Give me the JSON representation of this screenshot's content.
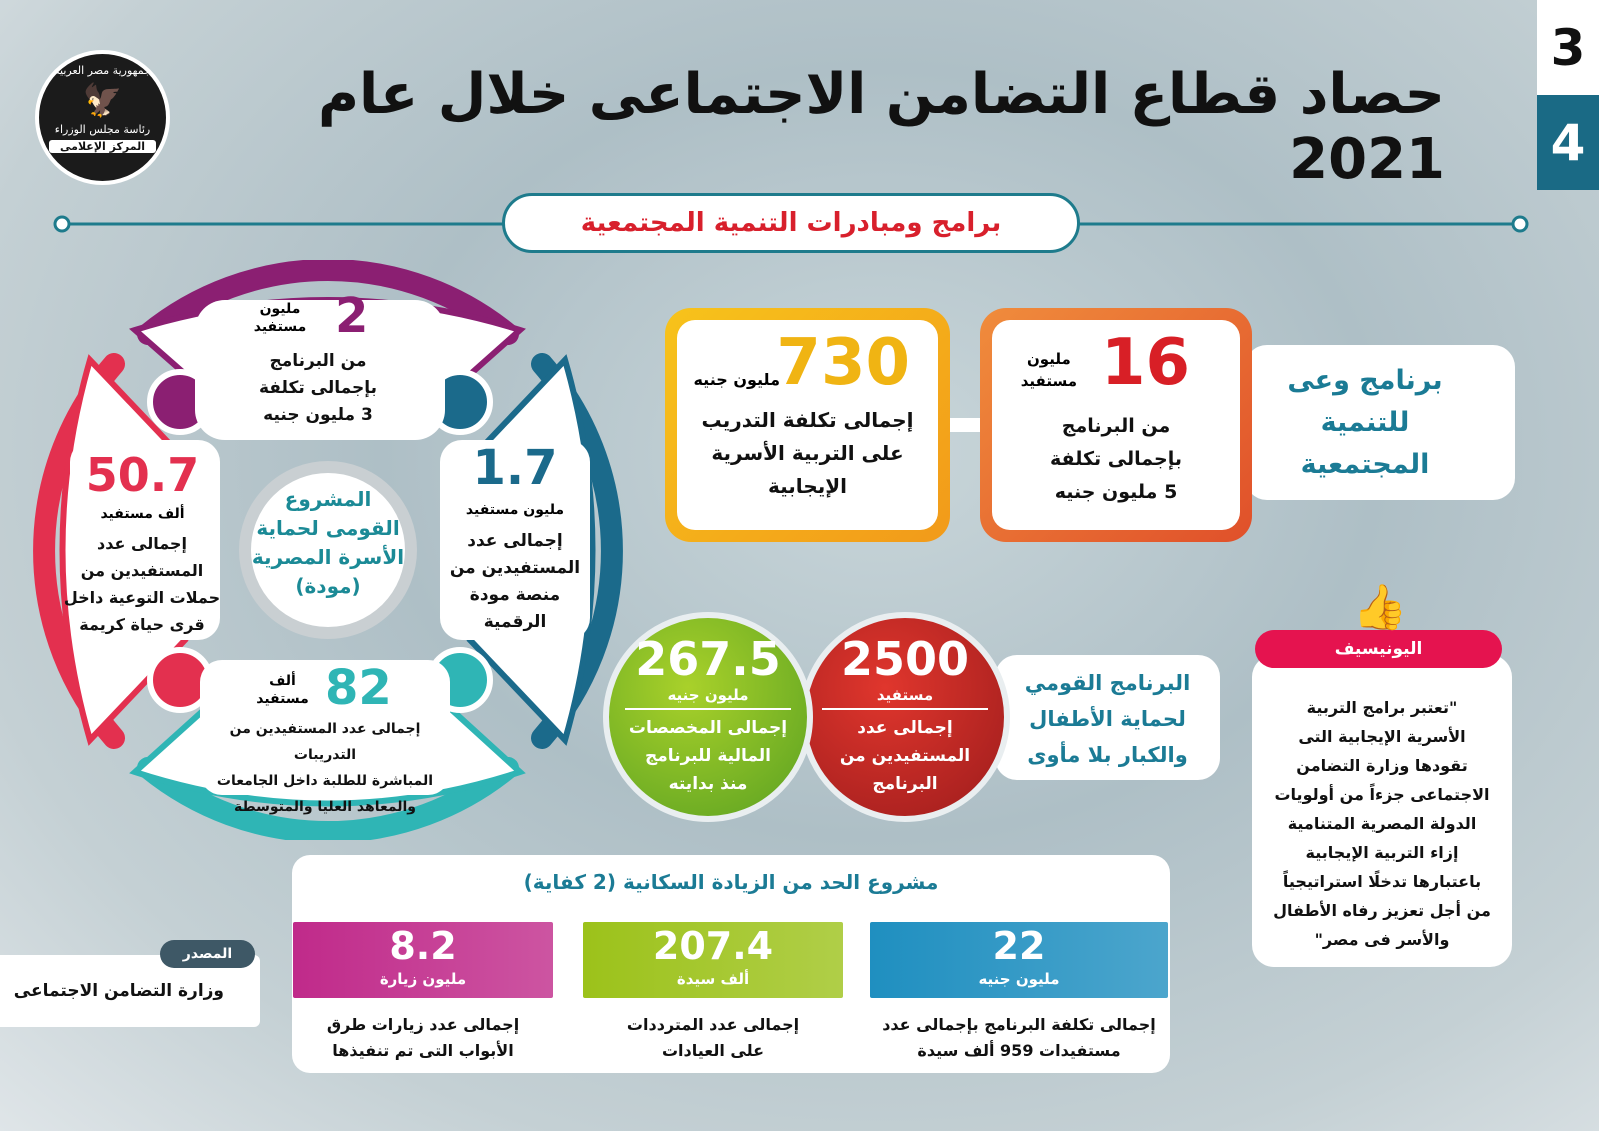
{
  "header": {
    "title": "حصاد قطاع التضامن الاجتماعى خلال عام 2021",
    "page_numbers": [
      "3",
      "4"
    ]
  },
  "logo": {
    "line1": "جمهورية مصر العربية",
    "line2": "رئاسة مجلس الوزراء",
    "line3": "المركز الإعلامى"
  },
  "section_title": "برامج ومبادرات التنمية المجتمعية",
  "mawadda": {
    "center": [
      "المشروع",
      "القومى لحماية",
      "الأسرة المصرية",
      "(مودة)"
    ],
    "top": {
      "value": "2",
      "unit": [
        "مليون",
        "مستفيد"
      ],
      "lines": [
        "من البرنامج",
        "بإجمالى تكلفة",
        "3 مليون جنيه"
      ]
    },
    "right": {
      "value": "1.7",
      "unit": "مليون مستفيد",
      "lines": [
        "إجمالى عدد",
        "المستفيدين من",
        "منصة مودة",
        "الرقمية"
      ]
    },
    "bottom": {
      "value": "82",
      "unit": [
        "ألف",
        "مستفيد"
      ],
      "lines": [
        "إجمالى عدد المستفيدين من التدريبات",
        "المباشرة للطلبة داخل الجامعات",
        "والمعاهد العليا والمتوسطة"
      ]
    },
    "left": {
      "value": "50.7",
      "unit": "ألف مستفيد",
      "lines": [
        "إجمالى عدد",
        "المستفيدين من",
        "حملات التوعية داخل",
        "قرى حياة كريمة"
      ]
    },
    "colors": {
      "top": "#8b1f72",
      "right": "#1b6a8b",
      "bottom": "#2fb5b5",
      "left": "#e3304f"
    }
  },
  "waey": {
    "label": [
      "برنامج وعى",
      "للتنمية",
      "المجتمعية"
    ],
    "box1": {
      "value": "16",
      "unit": [
        "مليون",
        "مستفيد"
      ],
      "lines": [
        "من البرنامج",
        "بإجمالى تكلفة",
        "5 مليون جنيه"
      ]
    },
    "box2": {
      "value": "730",
      "unit": "مليون جنيه",
      "lines": [
        "إجمالى تكلفة التدريب",
        "على التربية الأسرية",
        "الإيجابية"
      ]
    }
  },
  "homeless": {
    "label": [
      "البرنامج القومي",
      "لحماية الأطفال",
      "والكبار بلا مأوى"
    ],
    "red": {
      "value": "2500",
      "unit": "مستفيد",
      "lines": [
        "إجمالى عدد",
        "المستفيدين من",
        "البرنامج"
      ]
    },
    "green": {
      "value": "267.5",
      "unit": "مليون جنيه",
      "lines": [
        "إجمالى المخصصات",
        "المالية للبرنامج",
        "منذ بدايته"
      ]
    }
  },
  "unicef": {
    "label": "اليونيسيف",
    "quote": [
      "\"تعتبر برامج التربية",
      "الأسرية الإيجابية التى",
      "تقودها وزارة التضامن",
      "الاجتماعى جزءاً من أولويات",
      "الدولة المصرية المتنامية",
      "إزاء التربية الإيجابية",
      "باعتبارها تدخلًا استراتيجياً",
      "من أجل تعزيز رفاه الأطفال",
      "والأسر فى مصر\""
    ]
  },
  "kefaya": {
    "title": "مشروع الحد من الزيادة السكانية (2 كفاية)",
    "items": [
      {
        "value": "22",
        "unit": "مليون جنيه",
        "lines": [
          "إجمالى تكلفة البرنامج بإجمالى عدد",
          "مستفيدات 959 ألف سيدة"
        ],
        "color": "#1f8fc0"
      },
      {
        "value": "207.4",
        "unit": "ألف سيدة",
        "lines": [
          "إجمالى عدد المترددات",
          "على العيادات"
        ],
        "color": "#9cc21a"
      },
      {
        "value": "8.2",
        "unit": "مليون زيارة",
        "lines": [
          "إجمالى عدد زيارات طرق",
          "الأبواب التى تم تنفيذها"
        ],
        "color": "#c02a8a"
      }
    ]
  },
  "source": {
    "label": "المصدر",
    "value": "وزارة التضامن الاجتماعى"
  }
}
